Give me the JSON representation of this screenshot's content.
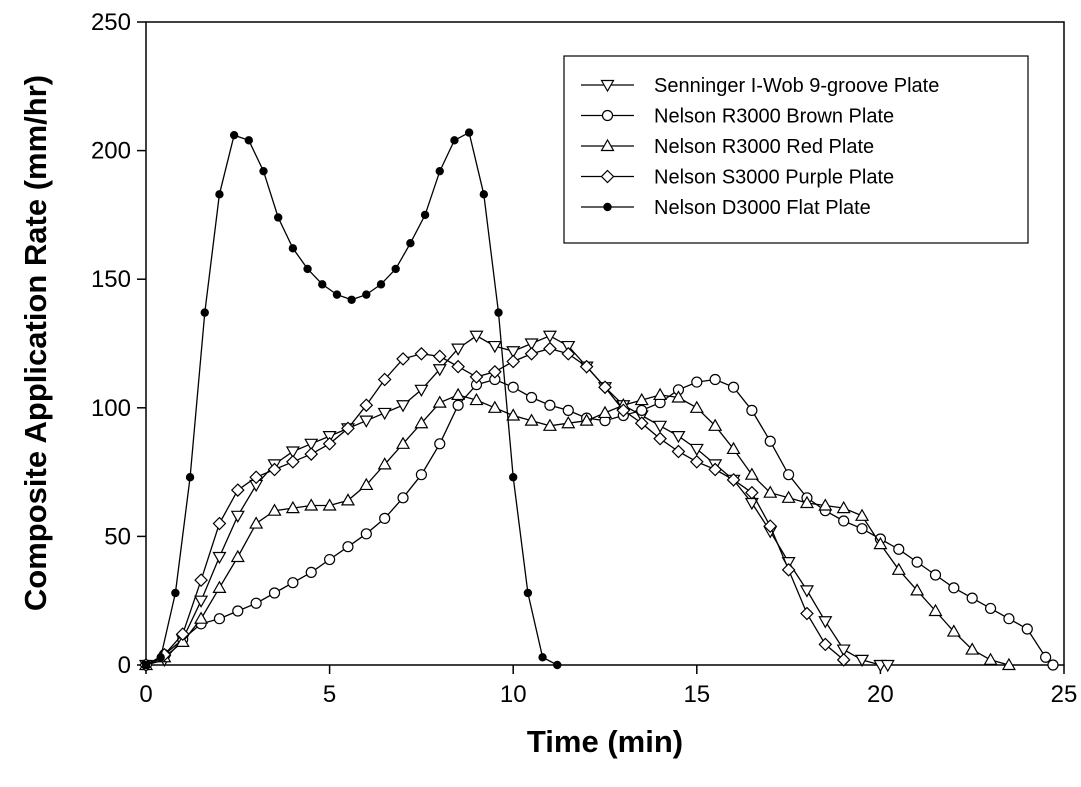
{
  "chart_data": {
    "type": "line",
    "title": "",
    "xlabel": "Time (min)",
    "ylabel": "Composite Application Rate (mm/hr)",
    "xlim": [
      0,
      25
    ],
    "ylim": [
      0,
      250
    ],
    "xticks": [
      0,
      5,
      10,
      15,
      20,
      25
    ],
    "yticks": [
      0,
      50,
      100,
      150,
      200,
      250
    ],
    "grid": false,
    "legend_position": "top-right",
    "series": [
      {
        "name": "Senninger I-Wob 9-groove Plate",
        "marker": "triangle-down",
        "x": [
          0,
          0.5,
          1,
          1.5,
          2,
          2.5,
          3,
          3.5,
          4,
          4.5,
          5,
          5.5,
          6,
          6.5,
          7,
          7.5,
          8,
          8.5,
          9,
          9.5,
          10,
          10.5,
          11,
          11.5,
          12,
          12.5,
          13,
          13.5,
          14,
          14.5,
          15,
          15.5,
          16,
          16.5,
          17,
          17.5,
          18,
          18.5,
          19,
          19.5,
          20,
          20.2
        ],
        "y": [
          0,
          2,
          10,
          25,
          42,
          58,
          70,
          78,
          83,
          86,
          89,
          92,
          95,
          98,
          101,
          107,
          115,
          123,
          128,
          124,
          122,
          125,
          128,
          124,
          116,
          108,
          101,
          97,
          93,
          89,
          84,
          78,
          72,
          63,
          52,
          40,
          29,
          17,
          6,
          2,
          0,
          0
        ]
      },
      {
        "name": "Nelson R3000 Brown Plate",
        "marker": "circle",
        "x": [
          0,
          0.5,
          1,
          1.5,
          2,
          2.5,
          3,
          3.5,
          4,
          4.5,
          5,
          5.5,
          6,
          6.5,
          7,
          7.5,
          8,
          8.5,
          9,
          9.5,
          10,
          10.5,
          11,
          11.5,
          12,
          12.5,
          13,
          13.5,
          14,
          14.5,
          15,
          15.5,
          16,
          16.5,
          17,
          17.5,
          18,
          18.5,
          19,
          19.5,
          20,
          20.5,
          21,
          21.5,
          22,
          22.5,
          23,
          23.5,
          24,
          24.5,
          24.7
        ],
        "y": [
          0,
          4,
          10,
          16,
          18,
          21,
          24,
          28,
          32,
          36,
          41,
          46,
          51,
          57,
          65,
          74,
          86,
          101,
          109,
          111,
          108,
          104,
          101,
          99,
          96,
          95,
          97,
          99,
          102,
          107,
          110,
          111,
          108,
          99,
          87,
          74,
          65,
          60,
          56,
          53,
          49,
          45,
          40,
          35,
          30,
          26,
          22,
          18,
          14,
          3,
          0
        ]
      },
      {
        "name": "Nelson R3000 Red Plate",
        "marker": "triangle-up",
        "x": [
          0,
          0.5,
          1,
          1.5,
          2,
          2.5,
          3,
          3.5,
          4,
          4.5,
          5,
          5.5,
          6,
          6.5,
          7,
          7.5,
          8,
          8.5,
          9,
          9.5,
          10,
          10.5,
          11,
          11.5,
          12,
          12.5,
          13,
          13.5,
          14,
          14.5,
          15,
          15.5,
          16,
          16.5,
          17,
          17.5,
          18,
          18.5,
          19,
          19.5,
          20,
          20.5,
          21,
          21.5,
          22,
          22.5,
          23,
          23.5
        ],
        "y": [
          0,
          3,
          9,
          18,
          30,
          42,
          55,
          60,
          61,
          62,
          62,
          64,
          70,
          78,
          86,
          94,
          102,
          105,
          103,
          100,
          97,
          95,
          93,
          94,
          95,
          98,
          101,
          103,
          105,
          104,
          100,
          93,
          84,
          74,
          67,
          65,
          63,
          62,
          61,
          58,
          47,
          37,
          29,
          21,
          13,
          6,
          2,
          0
        ]
      },
      {
        "name": "Nelson S3000 Purple Plate",
        "marker": "diamond",
        "x": [
          0,
          0.5,
          1,
          1.5,
          2,
          2.5,
          3,
          3.5,
          4,
          4.5,
          5,
          5.5,
          6,
          6.5,
          7,
          7.5,
          8,
          8.5,
          9,
          9.5,
          10,
          10.5,
          11,
          11.5,
          12,
          12.5,
          13,
          13.5,
          14,
          14.5,
          15,
          15.5,
          16,
          16.5,
          17,
          17.5,
          18,
          18.5,
          19
        ],
        "y": [
          0,
          4,
          12,
          33,
          55,
          68,
          73,
          76,
          79,
          82,
          86,
          92,
          101,
          111,
          119,
          121,
          120,
          116,
          112,
          114,
          118,
          121,
          123,
          121,
          116,
          108,
          99,
          94,
          88,
          83,
          79,
          76,
          72,
          67,
          54,
          37,
          20,
          8,
          2
        ]
      },
      {
        "name": "Nelson D3000 Flat Plate",
        "marker": "filled-circle",
        "x": [
          0,
          0.4,
          0.8,
          1.2,
          1.6,
          2.0,
          2.4,
          2.8,
          3.2,
          3.6,
          4.0,
          4.4,
          4.8,
          5.2,
          5.6,
          6.0,
          6.4,
          6.8,
          7.2,
          7.6,
          8.0,
          8.4,
          8.8,
          9.2,
          9.6,
          10.0,
          10.4,
          10.8,
          11.2
        ],
        "y": [
          0,
          3,
          28,
          73,
          137,
          183,
          206,
          204,
          192,
          174,
          162,
          154,
          148,
          144,
          142,
          144,
          148,
          154,
          164,
          175,
          192,
          204,
          207,
          183,
          137,
          73,
          28,
          3,
          0
        ]
      }
    ]
  }
}
